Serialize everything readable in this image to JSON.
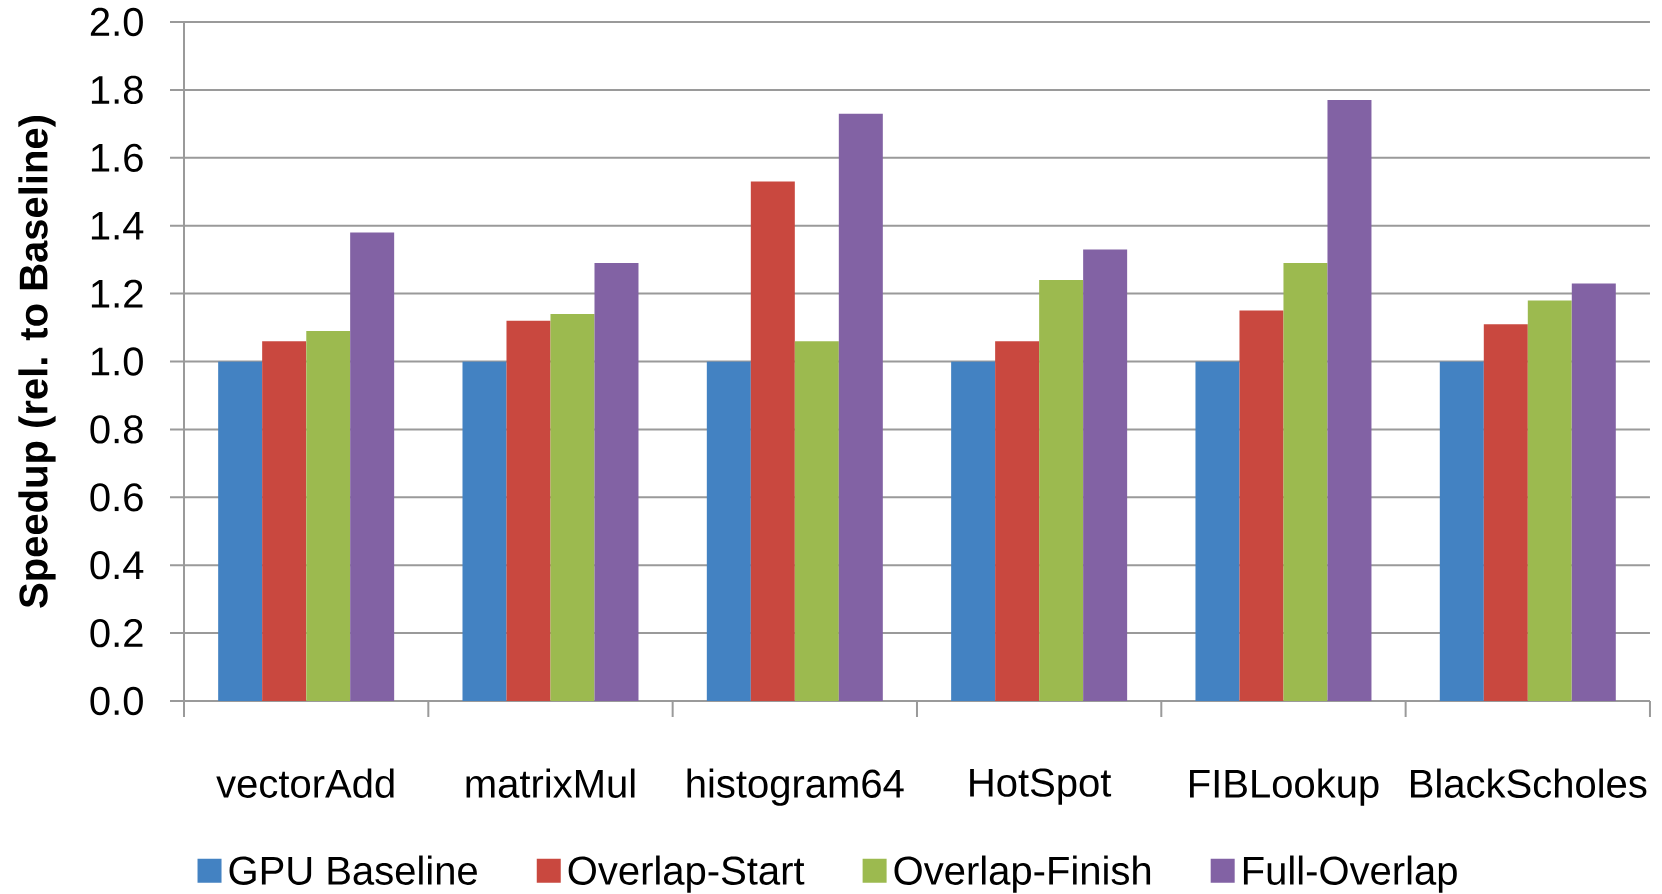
{
  "chart_data": {
    "type": "bar",
    "ylabel": "Speedup (rel. to Baseline)",
    "categories": [
      "vectorAdd",
      "matrixMul",
      "histogram64",
      "HotSpot",
      "FIBLookup",
      "BlackScholes"
    ],
    "series": [
      {
        "name": "GPU Baseline",
        "color": "#4382c2",
        "values": [
          1.0,
          1.0,
          1.0,
          1.0,
          1.0,
          1.0
        ]
      },
      {
        "name": "Overlap-Start",
        "color": "#c9483f",
        "values": [
          1.06,
          1.12,
          1.53,
          1.06,
          1.15,
          1.11
        ]
      },
      {
        "name": "Overlap-Finish",
        "color": "#9cba4f",
        "values": [
          1.09,
          1.14,
          1.06,
          1.24,
          1.29,
          1.18
        ]
      },
      {
        "name": "Full-Overlap",
        "color": "#8262a4",
        "values": [
          1.38,
          1.29,
          1.73,
          1.33,
          1.77,
          1.23
        ]
      }
    ],
    "ylim": [
      0,
      2.0
    ],
    "yticks": [
      {
        "value": 0,
        "label": "0.0"
      },
      {
        "value": 0.2,
        "label": "0.2"
      },
      {
        "value": 0.4,
        "label": "0.4"
      },
      {
        "value": 0.6,
        "label": "0.6"
      },
      {
        "value": 0.8,
        "label": "0.8"
      },
      {
        "value": 1.0,
        "label": "1.0"
      },
      {
        "value": 1.2,
        "label": "1.2"
      },
      {
        "value": 1.4,
        "label": "1.4"
      },
      {
        "value": 1.6,
        "label": "1.6"
      },
      {
        "value": 1.8,
        "label": "1.8"
      },
      {
        "value": 2.0,
        "label": "2.0"
      }
    ],
    "grid": "y",
    "legend": "bottom"
  }
}
